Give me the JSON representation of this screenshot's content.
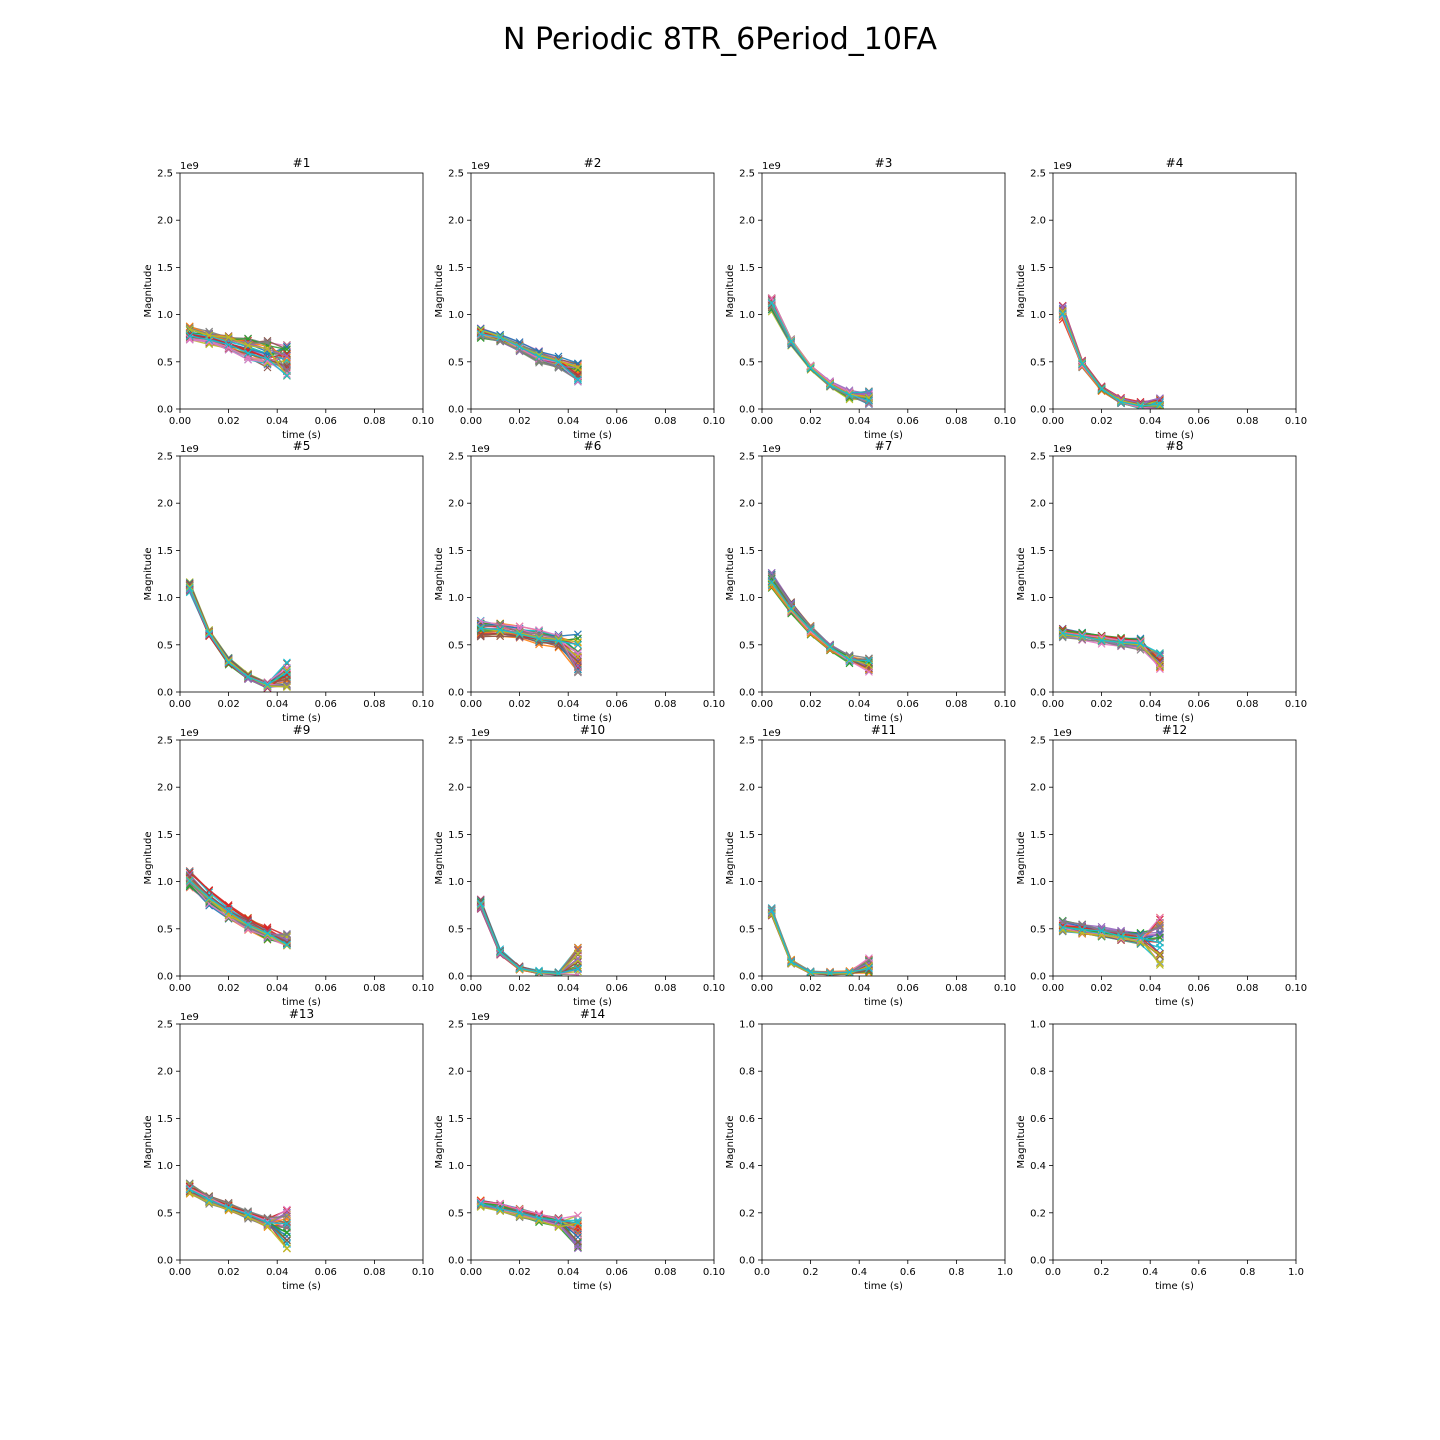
{
  "figure": {
    "title": "N Periodic 8TR_6Period_10FA"
  },
  "chart_data": [
    {
      "type": "line",
      "title": "#1",
      "xlabel": "time (s)",
      "ylabel": "Magnitude",
      "xlim": [
        0,
        0.1
      ],
      "ylim": [
        0,
        2.5
      ],
      "y_scale_label": "1e9",
      "xticks": [
        "0.00",
        "0.02",
        "0.04",
        "0.06",
        "0.08",
        "0.10"
      ],
      "yticks": [
        "0.0",
        "0.5",
        "1.0",
        "1.5",
        "2.0",
        "2.5"
      ],
      "x": [
        0.004,
        0.012,
        0.02,
        0.028,
        0.036,
        0.044
      ],
      "marker": "x",
      "band_low": [
        0.71,
        0.68,
        0.6,
        0.5,
        0.4,
        0.35
      ],
      "band_high": [
        0.88,
        0.83,
        0.79,
        0.76,
        0.74,
        0.68
      ]
    },
    {
      "type": "line",
      "title": "#2",
      "xlabel": "time (s)",
      "ylabel": "Magnitude",
      "xlim": [
        0,
        0.1
      ],
      "ylim": [
        0,
        2.5
      ],
      "y_scale_label": "1e9",
      "xticks": [
        "0.00",
        "0.02",
        "0.04",
        "0.06",
        "0.08",
        "0.10"
      ],
      "yticks": [
        "0.0",
        "0.5",
        "1.0",
        "1.5",
        "2.0",
        "2.5"
      ],
      "x": [
        0.004,
        0.012,
        0.02,
        0.028,
        0.036,
        0.044
      ],
      "marker": "x",
      "band_low": [
        0.74,
        0.7,
        0.6,
        0.47,
        0.42,
        0.28
      ],
      "band_high": [
        0.86,
        0.8,
        0.71,
        0.63,
        0.56,
        0.49
      ]
    },
    {
      "type": "line",
      "title": "#3",
      "xlabel": "time (s)",
      "ylabel": "Magnitude",
      "xlim": [
        0,
        0.1
      ],
      "ylim": [
        0,
        2.5
      ],
      "y_scale_label": "1e9",
      "xticks": [
        "0.00",
        "0.02",
        "0.04",
        "0.06",
        "0.08",
        "0.10"
      ],
      "yticks": [
        "0.0",
        "0.5",
        "1.0",
        "1.5",
        "2.0",
        "2.5"
      ],
      "x": [
        0.004,
        0.012,
        0.02,
        0.028,
        0.036,
        0.044
      ],
      "marker": "x",
      "band_low": [
        1.02,
        0.67,
        0.41,
        0.22,
        0.1,
        0.05
      ],
      "band_high": [
        1.2,
        0.75,
        0.47,
        0.3,
        0.2,
        0.19
      ]
    },
    {
      "type": "line",
      "title": "#4",
      "xlabel": "time (s)",
      "ylabel": "Magnitude",
      "xlim": [
        0,
        0.1
      ],
      "ylim": [
        0,
        2.5
      ],
      "y_scale_label": "1e9",
      "xticks": [
        "0.00",
        "0.02",
        "0.04",
        "0.06",
        "0.08",
        "0.10"
      ],
      "yticks": [
        "0.0",
        "0.5",
        "1.0",
        "1.5",
        "2.0",
        "2.5"
      ],
      "x": [
        0.004,
        0.012,
        0.02,
        0.028,
        0.036,
        0.044
      ],
      "marker": "x",
      "band_low": [
        0.94,
        0.43,
        0.18,
        0.05,
        0.0,
        0.0
      ],
      "band_high": [
        1.1,
        0.52,
        0.25,
        0.12,
        0.08,
        0.12
      ]
    },
    {
      "type": "line",
      "title": "#5",
      "xlabel": "time (s)",
      "ylabel": "Magnitude",
      "xlim": [
        0,
        0.1
      ],
      "ylim": [
        0,
        2.5
      ],
      "y_scale_label": "1e9",
      "xticks": [
        "0.00",
        "0.02",
        "0.04",
        "0.06",
        "0.08",
        "0.10"
      ],
      "yticks": [
        "0.0",
        "0.5",
        "1.0",
        "1.5",
        "2.0",
        "2.5"
      ],
      "x": [
        0.004,
        0.012,
        0.02,
        0.028,
        0.036,
        0.044
      ],
      "marker": "x",
      "band_low": [
        1.03,
        0.57,
        0.28,
        0.12,
        0.02,
        0.05
      ],
      "band_high": [
        1.17,
        0.66,
        0.37,
        0.2,
        0.12,
        0.34
      ]
    },
    {
      "type": "line",
      "title": "#6",
      "xlabel": "time (s)",
      "ylabel": "Magnitude",
      "xlim": [
        0,
        0.1
      ],
      "ylim": [
        0,
        2.5
      ],
      "y_scale_label": "1e9",
      "xticks": [
        "0.00",
        "0.02",
        "0.04",
        "0.06",
        "0.08",
        "0.10"
      ],
      "yticks": [
        "0.0",
        "0.5",
        "1.0",
        "1.5",
        "2.0",
        "2.5"
      ],
      "x": [
        0.004,
        0.012,
        0.02,
        0.028,
        0.036,
        0.044
      ],
      "marker": "x",
      "band_low": [
        0.55,
        0.57,
        0.54,
        0.49,
        0.46,
        0.2
      ],
      "band_high": [
        0.76,
        0.74,
        0.7,
        0.66,
        0.62,
        0.64
      ]
    },
    {
      "type": "line",
      "title": "#7",
      "xlabel": "time (s)",
      "ylabel": "Magnitude",
      "xlim": [
        0,
        0.1
      ],
      "ylim": [
        0,
        2.5
      ],
      "y_scale_label": "1e9",
      "xticks": [
        "0.00",
        "0.02",
        "0.04",
        "0.06",
        "0.08",
        "0.10"
      ],
      "yticks": [
        "0.0",
        "0.5",
        "1.0",
        "1.5",
        "2.0",
        "2.5"
      ],
      "x": [
        0.004,
        0.012,
        0.02,
        0.028,
        0.036,
        0.044
      ],
      "marker": "x",
      "band_low": [
        1.08,
        0.8,
        0.6,
        0.43,
        0.3,
        0.21
      ],
      "band_high": [
        1.27,
        0.96,
        0.71,
        0.51,
        0.4,
        0.36
      ]
    },
    {
      "type": "line",
      "title": "#8",
      "xlabel": "time (s)",
      "ylabel": "Magnitude",
      "xlim": [
        0,
        0.1
      ],
      "ylim": [
        0,
        2.5
      ],
      "y_scale_label": "1e9",
      "xticks": [
        "0.00",
        "0.02",
        "0.04",
        "0.06",
        "0.08",
        "0.10"
      ],
      "yticks": [
        "0.0",
        "0.5",
        "1.0",
        "1.5",
        "2.0",
        "2.5"
      ],
      "x": [
        0.004,
        0.012,
        0.02,
        0.028,
        0.036,
        0.044
      ],
      "marker": "x",
      "band_low": [
        0.56,
        0.54,
        0.5,
        0.46,
        0.43,
        0.24
      ],
      "band_high": [
        0.68,
        0.64,
        0.61,
        0.59,
        0.57,
        0.42
      ]
    },
    {
      "type": "line",
      "title": "#9",
      "xlabel": "time (s)",
      "ylabel": "Magnitude",
      "xlim": [
        0,
        0.1
      ],
      "ylim": [
        0,
        2.5
      ],
      "y_scale_label": "1e9",
      "xticks": [
        "0.00",
        "0.02",
        "0.04",
        "0.06",
        "0.08",
        "0.10"
      ],
      "yticks": [
        "0.0",
        "0.5",
        "1.0",
        "1.5",
        "2.0",
        "2.5"
      ],
      "x": [
        0.004,
        0.012,
        0.02,
        0.028,
        0.036,
        0.044
      ],
      "marker": "x",
      "band_low": [
        0.93,
        0.74,
        0.6,
        0.48,
        0.38,
        0.32
      ],
      "band_high": [
        1.14,
        0.92,
        0.76,
        0.63,
        0.52,
        0.45
      ]
    },
    {
      "type": "line",
      "title": "#10",
      "xlabel": "time (s)",
      "ylabel": "Magnitude",
      "xlim": [
        0,
        0.1
      ],
      "ylim": [
        0,
        2.5
      ],
      "y_scale_label": "1e9",
      "xticks": [
        "0.00",
        "0.02",
        "0.04",
        "0.06",
        "0.08",
        "0.10"
      ],
      "yticks": [
        "0.0",
        "0.5",
        "1.0",
        "1.5",
        "2.0",
        "2.5"
      ],
      "x": [
        0.004,
        0.012,
        0.02,
        0.028,
        0.036,
        0.044
      ],
      "marker": "x",
      "band_low": [
        0.7,
        0.22,
        0.06,
        0.02,
        0.01,
        0.01
      ],
      "band_high": [
        0.84,
        0.29,
        0.11,
        0.06,
        0.05,
        0.31
      ]
    },
    {
      "type": "line",
      "title": "#11",
      "xlabel": "time (s)",
      "ylabel": "Magnitude",
      "xlim": [
        0,
        0.1
      ],
      "ylim": [
        0,
        2.5
      ],
      "y_scale_label": "1e9",
      "xticks": [
        "0.00",
        "0.02",
        "0.04",
        "0.06",
        "0.08",
        "0.10"
      ],
      "yticks": [
        "0.0",
        "0.5",
        "1.0",
        "1.5",
        "2.0",
        "2.5"
      ],
      "x": [
        0.004,
        0.012,
        0.02,
        0.028,
        0.036,
        0.044
      ],
      "marker": "x",
      "band_low": [
        0.63,
        0.12,
        0.02,
        0.01,
        0.01,
        0.02
      ],
      "band_high": [
        0.74,
        0.18,
        0.06,
        0.05,
        0.06,
        0.19
      ]
    },
    {
      "type": "line",
      "title": "#12",
      "xlabel": "time (s)",
      "ylabel": "Magnitude",
      "xlim": [
        0,
        0.1
      ],
      "ylim": [
        0,
        2.5
      ],
      "y_scale_label": "1e9",
      "xticks": [
        "0.00",
        "0.02",
        "0.04",
        "0.06",
        "0.08",
        "0.10"
      ],
      "yticks": [
        "0.0",
        "0.5",
        "1.0",
        "1.5",
        "2.0",
        "2.5"
      ],
      "x": [
        0.004,
        0.012,
        0.02,
        0.028,
        0.036,
        0.044
      ],
      "marker": "x",
      "band_low": [
        0.46,
        0.43,
        0.4,
        0.36,
        0.33,
        0.09
      ],
      "band_high": [
        0.6,
        0.57,
        0.53,
        0.5,
        0.47,
        0.62
      ]
    },
    {
      "type": "line",
      "title": "#13",
      "xlabel": "time (s)",
      "ylabel": "Magnitude",
      "xlim": [
        0,
        0.1
      ],
      "ylim": [
        0,
        2.5
      ],
      "y_scale_label": "1e9",
      "xticks": [
        "0.00",
        "0.02",
        "0.04",
        "0.06",
        "0.08",
        "0.10"
      ],
      "yticks": [
        "0.0",
        "0.5",
        "1.0",
        "1.5",
        "2.0",
        "2.5"
      ],
      "x": [
        0.004,
        0.012,
        0.02,
        0.028,
        0.036,
        0.044
      ],
      "marker": "x",
      "band_low": [
        0.68,
        0.59,
        0.51,
        0.43,
        0.34,
        0.12
      ],
      "band_high": [
        0.82,
        0.69,
        0.61,
        0.52,
        0.46,
        0.54
      ]
    },
    {
      "type": "line",
      "title": "#14",
      "xlabel": "time (s)",
      "ylabel": "Magnitude",
      "xlim": [
        0,
        0.1
      ],
      "ylim": [
        0,
        2.5
      ],
      "y_scale_label": "1e9",
      "xticks": [
        "0.00",
        "0.02",
        "0.04",
        "0.06",
        "0.08",
        "0.10"
      ],
      "yticks": [
        "0.0",
        "0.5",
        "1.0",
        "1.5",
        "2.0",
        "2.5"
      ],
      "x": [
        0.004,
        0.012,
        0.02,
        0.028,
        0.036,
        0.044
      ],
      "marker": "x",
      "band_low": [
        0.54,
        0.5,
        0.44,
        0.39,
        0.34,
        0.12
      ],
      "band_high": [
        0.64,
        0.6,
        0.55,
        0.5,
        0.46,
        0.48
      ]
    },
    {
      "type": "line",
      "title": "",
      "xlabel": "time (s)",
      "ylabel": "Magnitude",
      "xlim": [
        0,
        1
      ],
      "ylim": [
        0,
        1
      ],
      "y_scale_label": "",
      "xticks": [
        "0.0",
        "0.2",
        "0.4",
        "0.6",
        "0.8",
        "1.0"
      ],
      "yticks": [
        "0.0",
        "0.2",
        "0.4",
        "0.6",
        "0.8",
        "1.0"
      ],
      "empty": true
    },
    {
      "type": "line",
      "title": "",
      "xlabel": "time (s)",
      "ylabel": "Magnitude",
      "xlim": [
        0,
        1
      ],
      "ylim": [
        0,
        1
      ],
      "y_scale_label": "",
      "xticks": [
        "0.0",
        "0.2",
        "0.4",
        "0.6",
        "0.8",
        "1.0"
      ],
      "yticks": [
        "0.0",
        "0.2",
        "0.4",
        "0.6",
        "0.8",
        "1.0"
      ],
      "empty": true
    }
  ],
  "series_count_per_panel": 30,
  "series_colors": [
    "#1f77b4",
    "#ff7f0e",
    "#2ca02c",
    "#d62728",
    "#9467bd",
    "#8c564b",
    "#e377c2",
    "#7f7f7f",
    "#bcbd22",
    "#17becf"
  ]
}
